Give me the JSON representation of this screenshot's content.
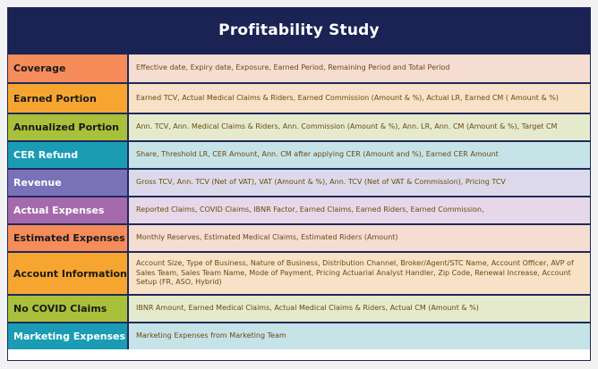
{
  "title": "Profitability Study",
  "rows": [
    {
      "category": "Coverage",
      "details": "Effective date, Expiry date, Exposure, Earned Period, Remaining Period and Total Period",
      "cat_color": "#f58c5a",
      "desc_color": "#f6ddd2",
      "text_color": "#1a1a1a"
    },
    {
      "category": "Earned Portion",
      "details": "Earned TCV, Actual Medical Claims & Riders, Earned Commission (Amount & %), Actual LR, Earned CM ( Amount & %)",
      "cat_color": "#f6a531",
      "desc_color": "#f7e2c8",
      "text_color": "#1a1a1a"
    },
    {
      "category": "Annualized Portion",
      "details": "Ann. TCV, Ann. Medical Claims & Riders, Ann. Commission (Amount & %), Ann. LR, Ann. CM (Amount & %), Target CM",
      "cat_color": "#a9c13a",
      "desc_color": "#e6eacd",
      "text_color": "#1a1a1a"
    },
    {
      "category": "CER Refund",
      "details": "Share, Threshold LR, CER Amount, Ann. CM after applying CER (Amount and %), Earned CER Amount",
      "cat_color": "#1a9cb4",
      "desc_color": "#c6e3e8",
      "text_color": "#ffffff"
    },
    {
      "category": "Revenue",
      "details": "Gross TCV, Ann. TCV (Net of VAT), VAT (Amount & %), Ann. TCV (Net of VAT & Commission), Pricing TCV",
      "cat_color": "#7a72b8",
      "desc_color": "#dcdaea",
      "text_color": "#ffffff"
    },
    {
      "category": "Actual Expenses",
      "details": "Reported Claims, COVID Claims, IBNR Factor, Earned Claims, Earned Riders, Earned Commission,",
      "cat_color": "#a46aac",
      "desc_color": "#e6d8e8",
      "text_color": "#ffffff"
    },
    {
      "category": "Estimated Expenses",
      "details": "Monthly Reserves, Estimated Medical Claims, Estimated Riders (Amount)",
      "cat_color": "#f58c5a",
      "desc_color": "#f6ddd2",
      "text_color": "#1a1a1a"
    },
    {
      "category": "Account Information",
      "details": "Account Size, Type of Business, Nature of Business, Distribution Channel, Broker/Agent/STC Name, Account Officer, AVP of Sales Team, Sales Team Name, Mode of Payment, Pricing Actuarial Analyst Handler, Zip Code, Renewal Increase, Account Setup (FR, ASO, Hybrid)",
      "cat_color": "#f6a531",
      "desc_color": "#f7e2c8",
      "text_color": "#1a1a1a"
    },
    {
      "category": "No COVID Claims",
      "details": "IBNR Amount, Earned Medical Claims, Actual Medical Claims & Riders, Actual CM  (Amount & %)",
      "cat_color": "#a9c13a",
      "desc_color": "#e6eacd",
      "text_color": "#1a1a1a"
    },
    {
      "category": "Marketing Expenses",
      "details": "Marketing Expenses from Marketing Team",
      "cat_color": "#1a9cb4",
      "desc_color": "#c6e3e8",
      "text_color": "#ffffff"
    }
  ]
}
